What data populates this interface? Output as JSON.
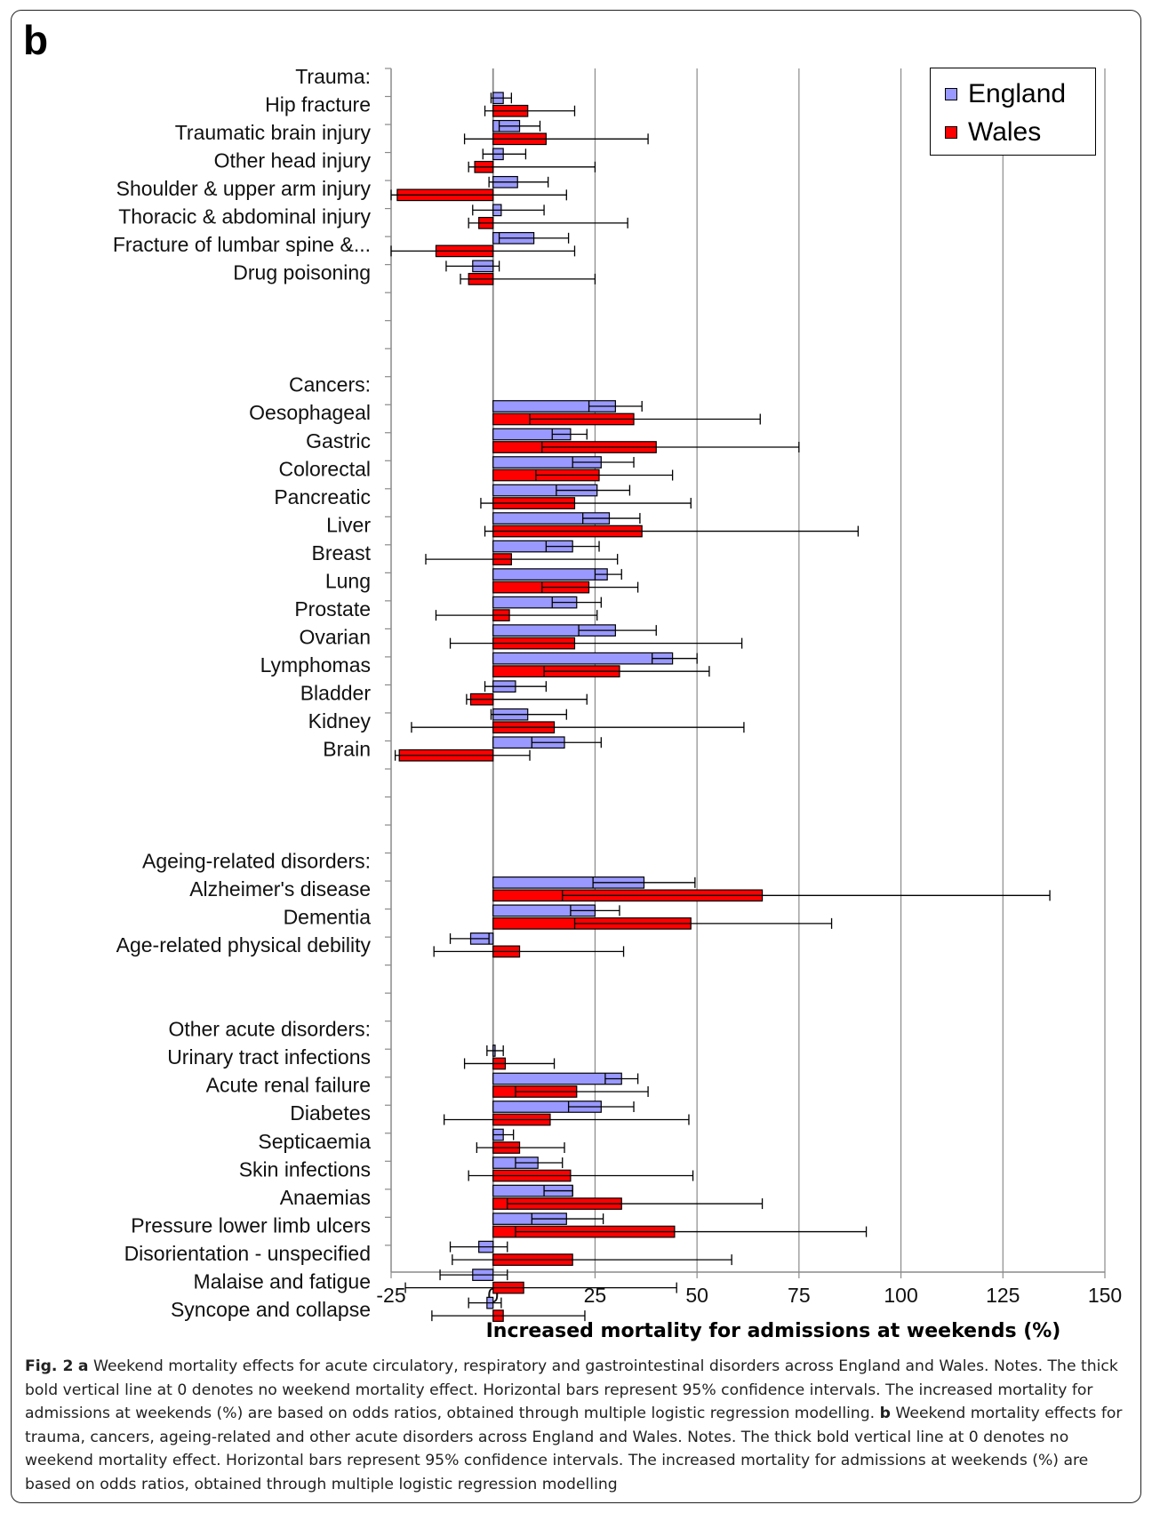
{
  "panel_label": "b",
  "chart_data": {
    "type": "bar",
    "orientation": "horizontal",
    "xlabel": "Increased mortality for admissions at weekends (%)",
    "xlim": [
      -25,
      150
    ],
    "xticks": [
      "-25",
      "0",
      "25",
      "50",
      "75",
      "100",
      "125",
      "150"
    ],
    "grid": true,
    "legend_position": "top-right",
    "series": [
      {
        "name": "England",
        "color": "#9999ff"
      },
      {
        "name": "Wales",
        "color": "#ff0000"
      }
    ],
    "rows": [
      {
        "label": "Trauma:",
        "header": true
      },
      {
        "label": "Hip fracture",
        "eng": [
          2.5,
          -0.5,
          4.5
        ],
        "wal": [
          8.5,
          -2,
          20
        ]
      },
      {
        "label": "Traumatic brain injury",
        "eng": [
          6.5,
          1.5,
          11.5
        ],
        "wal": [
          13,
          -7,
          38
        ]
      },
      {
        "label": "Other head injury",
        "eng": [
          2.5,
          -2.5,
          8
        ],
        "wal": [
          -4.5,
          -6,
          25
        ]
      },
      {
        "label": "Shoulder & upper arm injury",
        "eng": [
          6,
          -1,
          13.5
        ],
        "wal": [
          -23.5,
          -25,
          18
        ]
      },
      {
        "label": "Thoracic & abdominal injury",
        "eng": [
          2,
          -5,
          12.5
        ],
        "wal": [
          -3.5,
          -6,
          33
        ]
      },
      {
        "label": "Fracture of lumbar spine &...",
        "eng": [
          10,
          1.5,
          18.5
        ],
        "wal": [
          -14,
          -25,
          20
        ]
      },
      {
        "label": "Drug poisoning",
        "eng": [
          -5,
          -11.5,
          1.5
        ],
        "wal": [
          -6,
          -8,
          25
        ]
      },
      {
        "label": "",
        "blank": true
      },
      {
        "label": "",
        "blank": true
      },
      {
        "label": "",
        "blank": true
      },
      {
        "label": "Cancers:",
        "header": true
      },
      {
        "label": "Oesophageal",
        "eng": [
          30,
          23.5,
          36.5
        ],
        "wal": [
          34.5,
          9,
          65.5
        ]
      },
      {
        "label": "Gastric",
        "eng": [
          19,
          14.5,
          23
        ],
        "wal": [
          40,
          12,
          75
        ]
      },
      {
        "label": "Colorectal",
        "eng": [
          26.5,
          19.5,
          34.5
        ],
        "wal": [
          26,
          10.5,
          44
        ]
      },
      {
        "label": "Pancreatic",
        "eng": [
          25.5,
          15.5,
          33.5
        ],
        "wal": [
          20,
          -3,
          48.5
        ]
      },
      {
        "label": "Liver",
        "eng": [
          28.5,
          22,
          36
        ],
        "wal": [
          36.5,
          -2,
          89.5
        ]
      },
      {
        "label": "Breast",
        "eng": [
          19.5,
          13,
          26
        ],
        "wal": [
          4.5,
          -16.5,
          30.5
        ]
      },
      {
        "label": "Lung",
        "eng": [
          28,
          25,
          31.5
        ],
        "wal": [
          23.5,
          12,
          35.5
        ]
      },
      {
        "label": "Prostate",
        "eng": [
          20.5,
          14.5,
          26.5
        ],
        "wal": [
          4,
          -14,
          25.5
        ]
      },
      {
        "label": "Ovarian",
        "eng": [
          30,
          21,
          40
        ],
        "wal": [
          20,
          -10.5,
          61
        ]
      },
      {
        "label": "Lymphomas",
        "eng": [
          44,
          39,
          50
        ],
        "wal": [
          31,
          12.5,
          53
        ]
      },
      {
        "label": "Bladder",
        "eng": [
          5.5,
          -2,
          13
        ],
        "wal": [
          -5.5,
          -6.5,
          23
        ]
      },
      {
        "label": "Kidney",
        "eng": [
          8.5,
          -0.5,
          18
        ],
        "wal": [
          15,
          -20,
          61.5
        ]
      },
      {
        "label": "Brain",
        "eng": [
          17.5,
          9.5,
          26.5
        ],
        "wal": [
          -23,
          -24,
          9
        ]
      },
      {
        "label": "",
        "blank": true
      },
      {
        "label": "",
        "blank": true
      },
      {
        "label": "",
        "blank": true
      },
      {
        "label": "Ageing-related disorders:",
        "header": true
      },
      {
        "label": "Alzheimer's disease",
        "eng": [
          37,
          24.5,
          49.5
        ],
        "wal": [
          66,
          17,
          136.5
        ]
      },
      {
        "label": "Dementia",
        "eng": [
          25,
          19,
          31
        ],
        "wal": [
          48.5,
          20,
          83
        ]
      },
      {
        "label": "Age-related physical debility",
        "eng": [
          -5.5,
          -10.5,
          -1
        ],
        "wal": [
          6.5,
          -14.5,
          32
        ]
      },
      {
        "label": "",
        "blank": true
      },
      {
        "label": "",
        "blank": true
      },
      {
        "label": "Other acute disorders:",
        "header": true
      },
      {
        "label": "Urinary tract infections",
        "eng": [
          0.5,
          -1.5,
          2.5
        ],
        "wal": [
          3,
          -7,
          15
        ]
      },
      {
        "label": "Acute renal failure",
        "eng": [
          31.5,
          27.5,
          35.5
        ],
        "wal": [
          20.5,
          5.5,
          38
        ]
      },
      {
        "label": "Diabetes",
        "eng": [
          26.5,
          18.5,
          34.5
        ],
        "wal": [
          14,
          -12,
          48
        ]
      },
      {
        "label": "Septicaemia",
        "eng": [
          2.5,
          0,
          5
        ],
        "wal": [
          6.5,
          -4,
          17.5
        ]
      },
      {
        "label": "Skin infections",
        "eng": [
          11,
          5.5,
          17
        ],
        "wal": [
          19,
          -6,
          49
        ]
      },
      {
        "label": "Anaemias",
        "eng": [
          19.5,
          12.5,
          19.5
        ],
        "wal": [
          31.5,
          3.5,
          66
        ]
      },
      {
        "label": "Pressure lower limb ulcers",
        "eng": [
          18,
          9.5,
          27
        ],
        "wal": [
          44.5,
          5.5,
          91.5
        ]
      },
      {
        "label": "Disorientation - unspecified",
        "eng": [
          -3.5,
          -10.5,
          3.5
        ],
        "wal": [
          19.5,
          -10,
          58.5
        ]
      },
      {
        "label": "Malaise and fatigue",
        "eng": [
          -5,
          -13,
          3.5
        ],
        "wal": [
          7.5,
          -21.5,
          45
        ]
      },
      {
        "label": "Syncope and collapse",
        "eng": [
          -1.5,
          -6,
          2
        ],
        "wal": [
          2.5,
          -15,
          22.5
        ]
      }
    ]
  },
  "caption": {
    "fig_label": "Fig. 2",
    "a_label": "a",
    "a_text": " Weekend mortality effects for acute circulatory, respiratory and gastrointestinal disorders across England and Wales. Notes. The thick bold vertical line at 0 denotes no weekend mortality effect. Horizontal bars represent 95% confidence intervals. The increased mortality for admissions at weekends (%) are based on odds ratios, obtained through multiple logistic regression modelling. ",
    "b_label": "b",
    "b_text": " Weekend mortality effects for trauma, cancers, ageing-related and other acute disorders across England and Wales. Notes. The thick bold vertical line at 0 denotes no weekend mortality effect. Horizontal bars represent 95% confidence intervals. The increased mortality for admissions at weekends (%) are based on odds ratios, obtained through multiple logistic regression modelling"
  }
}
